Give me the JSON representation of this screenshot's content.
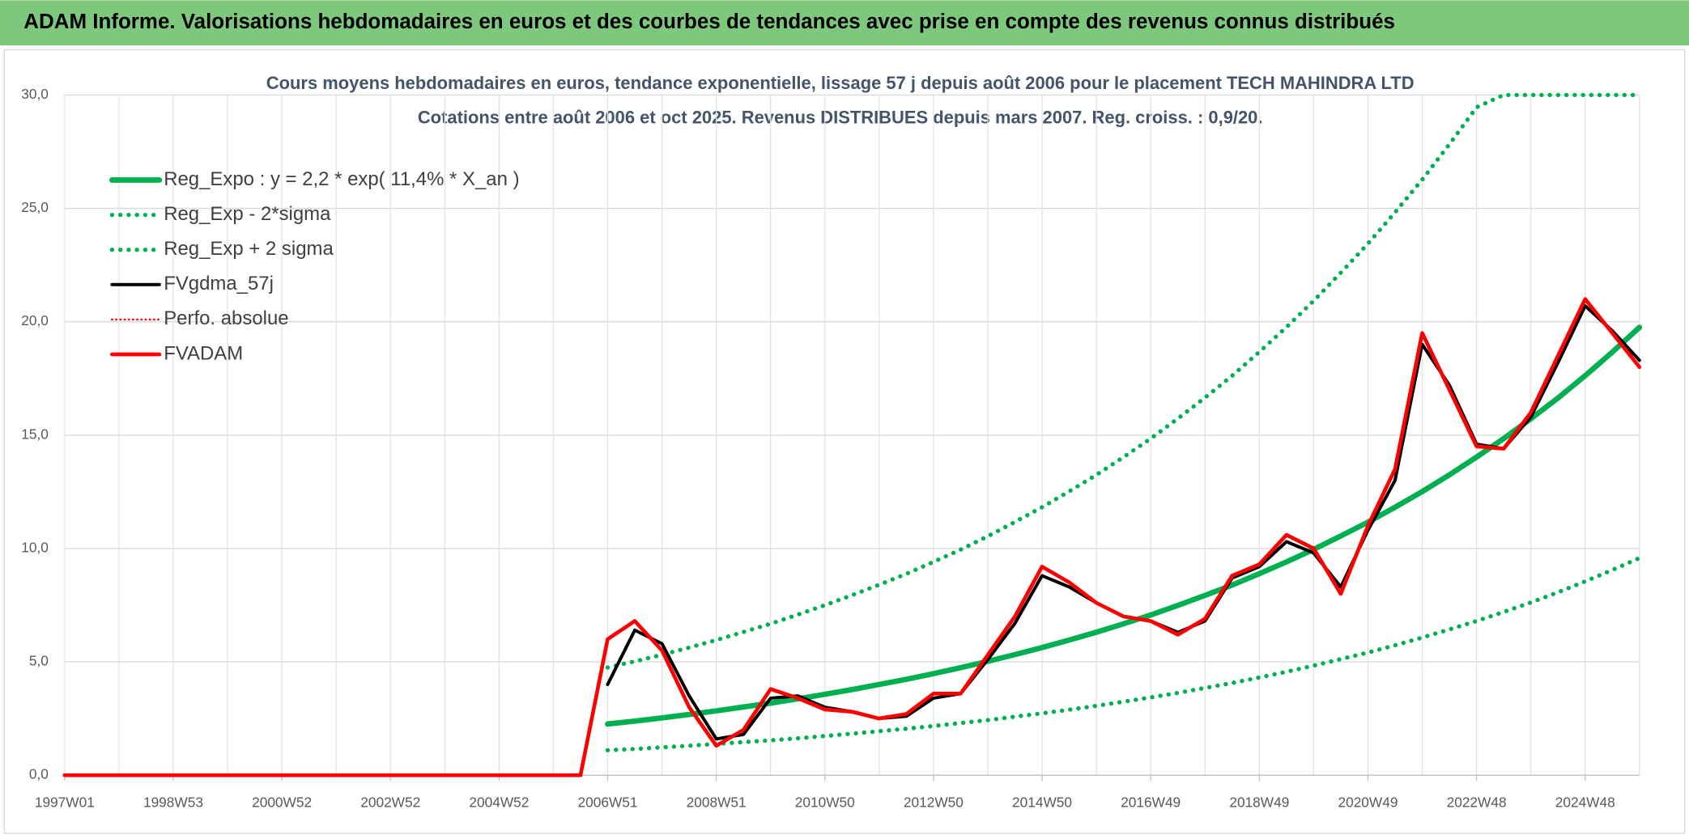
{
  "chart_data": {
    "type": "line",
    "header": "ADAM Informe. Valorisations hebdomadaires en euros et des courbes de tendances avec prise en compte des revenus connus distribués",
    "title": "Cours moyens hebdomadaires en euros, tendance exponentielle, lissage 57 j depuis août 2006 pour le placement TECH MAHINDRA LTD",
    "subtitle": "Cotations entre août 2006 et oct 2025. Revenus DISTRIBUES depuis mars 2007. Reg. croiss. : 0,9/20.",
    "categories": [
      "1997W01",
      null,
      null,
      null,
      "1998W53",
      null,
      null,
      null,
      "2000W52",
      null,
      null,
      null,
      "2002W52",
      null,
      null,
      null,
      "2004W52",
      null,
      null,
      null,
      "2006W51",
      null,
      null,
      null,
      "2008W51",
      null,
      null,
      null,
      "2010W50",
      null,
      null,
      null,
      "2012W50",
      null,
      null,
      null,
      "2014W50",
      null,
      null,
      null,
      "2016W49",
      null,
      null,
      null,
      "2018W49",
      null,
      null,
      null,
      "2020W49",
      null,
      null,
      null,
      "2022W48",
      null,
      null,
      null,
      "2024W48",
      null,
      null
    ],
    "ylim": [
      0,
      30
    ],
    "yticks": [
      {
        "value": 0,
        "label": "0,0"
      },
      {
        "value": 5,
        "label": "5,0"
      },
      {
        "value": 10,
        "label": "10,0"
      },
      {
        "value": 15,
        "label": "15,0"
      },
      {
        "value": 20,
        "label": "20,0"
      },
      {
        "value": 25,
        "label": "25,0"
      },
      {
        "value": 30,
        "label": "30,0"
      }
    ],
    "grid": true,
    "legend": "top-left",
    "series": [
      {
        "name": "Reg_Expo : y = 2,2 * exp( 11,4% *  X_an )",
        "color": "#00b050",
        "style": "solid",
        "width": 5,
        "values": [
          null,
          null,
          null,
          null,
          null,
          null,
          null,
          null,
          null,
          null,
          null,
          null,
          null,
          null,
          null,
          null,
          null,
          null,
          null,
          null,
          2.26,
          2.39,
          2.53,
          2.68,
          2.84,
          3.01,
          3.18,
          3.37,
          3.57,
          3.78,
          4.0,
          4.23,
          4.48,
          4.74,
          5.02,
          5.32,
          5.63,
          5.96,
          6.31,
          6.68,
          7.07,
          7.49,
          7.93,
          8.39,
          8.89,
          9.41,
          9.96,
          10.55,
          11.16,
          11.82,
          12.51,
          13.25,
          14.03,
          14.85,
          15.72,
          16.64,
          17.62,
          18.66,
          19.75
        ]
      },
      {
        "name": "Reg_Exp - 2*sigma",
        "color": "#00b050",
        "style": "dotted",
        "width": 4,
        "values": [
          null,
          null,
          null,
          null,
          null,
          null,
          null,
          null,
          null,
          null,
          null,
          null,
          null,
          null,
          null,
          null,
          null,
          null,
          null,
          null,
          1.1,
          1.16,
          1.23,
          1.3,
          1.38,
          1.46,
          1.54,
          1.63,
          1.73,
          1.83,
          1.94,
          2.05,
          2.17,
          2.3,
          2.43,
          2.58,
          2.73,
          2.89,
          3.06,
          3.24,
          3.43,
          3.63,
          3.85,
          4.07,
          4.31,
          4.56,
          4.83,
          5.12,
          5.41,
          5.73,
          6.07,
          6.43,
          6.8,
          7.2,
          7.62,
          8.07,
          8.55,
          9.05,
          9.58
        ]
      },
      {
        "name": "Reg_Exp + 2 sigma",
        "color": "#00b050",
        "style": "dotted",
        "width": 4,
        "values": [
          null,
          null,
          null,
          null,
          null,
          null,
          null,
          null,
          null,
          null,
          null,
          null,
          null,
          null,
          null,
          null,
          null,
          null,
          null,
          null,
          4.75,
          5.02,
          5.31,
          5.63,
          5.96,
          6.32,
          6.68,
          7.08,
          7.5,
          7.94,
          8.4,
          8.88,
          9.41,
          9.95,
          10.54,
          11.17,
          11.82,
          12.52,
          13.25,
          14.03,
          14.85,
          15.73,
          16.65,
          17.62,
          18.67,
          19.76,
          20.92,
          22.16,
          23.44,
          24.82,
          26.27,
          27.83,
          29.46,
          30,
          30,
          30,
          30,
          30,
          30
        ]
      },
      {
        "name": "FVgdma_57j",
        "color": "#000000",
        "style": "solid",
        "width": 3,
        "values": [
          null,
          null,
          null,
          null,
          null,
          null,
          null,
          null,
          null,
          null,
          null,
          null,
          null,
          null,
          null,
          null,
          null,
          null,
          null,
          null,
          4.0,
          6.4,
          5.8,
          3.5,
          1.6,
          1.8,
          3.4,
          3.5,
          3.0,
          2.8,
          2.5,
          2.6,
          3.4,
          3.6,
          5.1,
          6.7,
          8.8,
          8.3,
          7.6,
          7.0,
          6.8,
          6.3,
          6.8,
          8.7,
          9.2,
          10.3,
          9.8,
          8.3,
          10.8,
          13.0,
          19.0,
          17.2,
          14.6,
          14.4,
          15.8,
          18.2,
          20.7,
          19.6,
          18.3
        ]
      },
      {
        "name": "Perfo. absolue",
        "color": "#ff0000",
        "style": "dotted",
        "width": 2,
        "values": [
          0,
          0,
          0,
          0,
          0,
          0,
          0,
          0,
          0,
          0,
          0,
          0,
          0,
          0,
          0,
          0,
          0,
          0,
          0,
          0,
          6.0,
          6.8,
          5.5,
          3.0,
          1.3,
          2.0,
          3.8,
          3.4,
          2.9,
          2.8,
          2.5,
          2.7,
          3.6,
          3.6,
          5.3,
          7.0,
          9.2,
          8.5,
          7.6,
          7.0,
          6.8,
          6.2,
          6.9,
          8.8,
          9.3,
          10.6,
          10.0,
          8.0,
          11.0,
          13.5,
          19.5,
          17.0,
          14.5,
          14.4,
          16.0,
          18.5,
          21.0,
          19.5,
          18.0
        ]
      },
      {
        "name": "FVADAM",
        "color": "#ff0000",
        "style": "solid",
        "width": 3.5,
        "values": [
          0,
          0,
          0,
          0,
          0,
          0,
          0,
          0,
          0,
          0,
          0,
          0,
          0,
          0,
          0,
          0,
          0,
          0,
          0,
          0,
          6.0,
          6.8,
          5.5,
          3.0,
          1.3,
          2.0,
          3.8,
          3.4,
          2.9,
          2.8,
          2.5,
          2.7,
          3.6,
          3.6,
          5.3,
          7.0,
          9.2,
          8.5,
          7.6,
          7.0,
          6.8,
          6.2,
          6.9,
          8.8,
          9.3,
          10.6,
          10.0,
          8.0,
          11.0,
          13.5,
          19.5,
          17.0,
          14.5,
          14.4,
          16.0,
          18.5,
          21.0,
          19.5,
          18.0
        ]
      }
    ]
  }
}
